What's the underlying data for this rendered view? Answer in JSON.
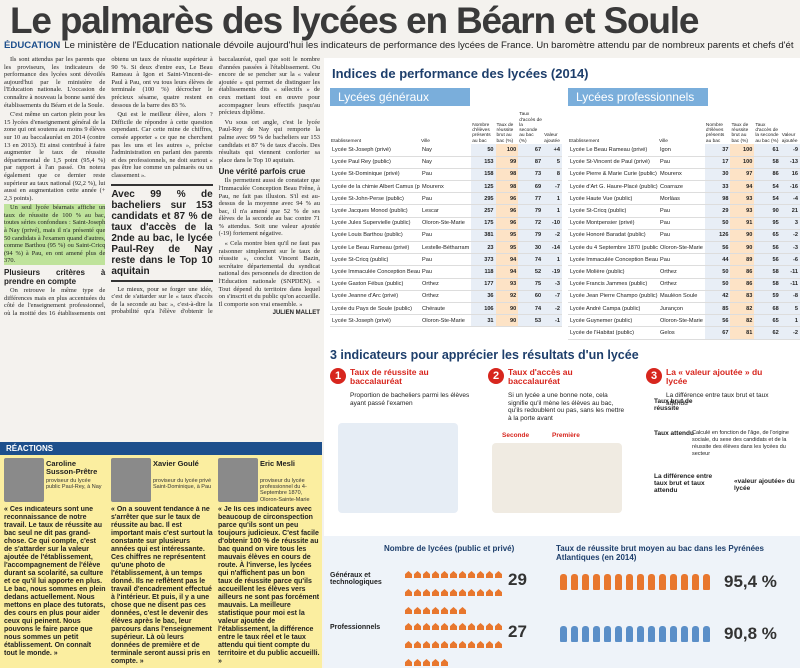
{
  "header": {
    "title": "Le palmarès des lycées en Béarn et Soule",
    "rubric": "ÉDUCATION",
    "standfirst": "Le ministère de l'Education nationale dévoile aujourd'hui les indicateurs de performance des lycées de France. Un baromètre attendu par de nombreux parents et chefs d'établissement."
  },
  "article": {
    "paragraphs": [
      "Ils sont attendus par les parents que les proviseurs, les indicateurs de performance des lycées sont dévoilés aujourd'hui par le ministère de l'Education nationale. L'occasion de connaître à nouveau la bonne santé des établissements du Béarn et de la Soule.",
      "C'est même un carton plein pour les 15 lycées d'enseignement général de la zone qui ont soutenu au moins 9 élèves sur 10 au baccalauréat en 2014 (contre 13 en 2013). Et ainsi contribué à faire augmenter le taux de réussite départemental de 1,5 point (95,4 %) par rapport à l'an passé. On notera également que ce dernier reste supérieur au taux national (92,2 %), lui aussi en augmentation cette année (+ 2,3 points).",
      "Un seul lycée béarnais affiche un taux de réussite de 100 % au bac, toutes séries confondues : Saint-Joseph à Nay (privé), mais il n'a présenté que 50 candidats à l'examen quand d'autres, comme Barthou (95 %) ou Saint-Cricq (94 %) à Pau, en ont amené plus de 370."
    ],
    "subheads": [
      "Plusieurs critères à prendre en compte",
      "Une vérité parfois crue"
    ],
    "paragraphs2": [
      "On retrouve le même type de différences mais en plus accentuées du côté de l'enseignement professionnel, où la moitié des 16 établissements ont obtenu un taux de réussite supérieur à 90 %. Si deux d'entre eux, Le Beau Rameau à Igon et Saint-Vincent-de-Paul à Pau, ont vu tous leurs élèves de terminale (100 %) décrocher le précieux sésame, quatre restent en dessous de la barre des 83 %.",
      "Qui est le meilleur élève, alors ? Difficile de répondre à cette question cependant. Car cette mine de chiffres, censée apporter « ce que ne cherchent pas les uns et les autres », précise l'administration en parlant des parents et des professionnels, ne doit surtout « pas être lue comme un palmarès ou un classement »."
    ],
    "pullquote": "Avec 99 % de bacheliers sur 153 candidats et 87 % de taux d'accès de la 2nde au bac, le lycée Paul-Rey de Nay reste dans le Top 10 aquitain",
    "paragraphs3": [
      "Le mieux, pour se forger une idée, c'est de s'attarder sur le « taux d'accès de la seconde au bac », c'est-à-dire la probabilité qu'a l'élève d'obtenir le baccalauréat, quel que soit le nombre d'années passées à l'établissement. Ou encore de se pencher sur la « valeur ajoutée » qui permet de distinguer les établissements dits « sélectifs » de ceux mettant tout en œuvre pour accompagner leurs effectifs jusqu'au précieux diplôme.",
      "Vu sous cet angle, c'est le lycée Paul-Rey de Nay qui remporte la palme avec 99 % de bacheliers sur 153 candidats et 87 % de taux d'accès. Des résultats qui viennent conforter sa place dans le Top 10 aquitain.",
      "Ils permettent aussi de constater que l'Immaculée Conception Beau Frêne, à Pau, ne fait pas illusion. S'il est au-dessus de la moyenne avec 94 % au bac, il n'a amené que 52 % de ses élèves de la seconde au bac contre 71 % attendus. Soit une valeur ajoutée (-19) fortement négative.",
      "« Cela montre bien qu'il ne faut pas raisonner simplement sur le taux de réussite », conclut Vincent Bazin, secrétaire départemental du syndicat national des personnels de direction de l'Education nationale (SNPDEN). « Tout dépend du territoire dans lequel on s'inscrit et du public qu'on accueille. Il comporte son vrai ensemble. »"
    ],
    "signature": "JULIEN MALLET"
  },
  "reactions": {
    "label": "RÉACTIONS",
    "people": [
      {
        "name": "Caroline Susson-Prêtre",
        "role": "proviseur du lycée public Paul-Rey, à Nay",
        "quote": "« Ces indicateurs sont une reconnaissance de notre travail. Le taux de réussite au bac seul ne dit pas grand-chose. Ce qui compte, c'est de s'attarder sur la valeur ajoutée de l'établissement, l'accompagnement de l'élève durant sa scolarité, sa culture et ce qu'il lui apporte en plus. Le bac, nous sommes en plein dedans actuellement. Nous mettons en place des tutorats, des cours en plus pour aider ceux qui peinent. Nous pouvons le faire parce que nous sommes un petit établissement. On connaît tout le monde. »"
      },
      {
        "name": "Xavier Goulé",
        "role": "proviseur du lycée privé Saint-Dominique, à Pau",
        "quote": "« On a souvent tendance à ne s'arrêter que sur le taux de réussite au bac. Il est important mais c'est surtout la constante sur plusieurs années qui est intéressante. Ces chiffres ne représentent qu'une photo de l'établissement, à un temps donné. Ils ne reflètent pas le travail d'encadrement effectué à l'intérieur. Et puis, il y a une chose que ne disent pas ces données, c'est le devenir des élèves après le bac, leur parcours dans l'enseignement supérieur. Là où leurs données de première et de terminale seront aussi pris en compte. »"
      },
      {
        "name": "Eric Mesli",
        "role": "proviseur du lycée professionnel du 4-Septembre 1870, Oloron-Sainte-Marie",
        "quote": "« Je lis ces indicateurs avec beaucoup de circonspection parce qu'ils sont un peu toujours judicieux. C'est facile d'obtenir 100 % de réussite au bac quand on vire tous les mauvais élèves en cours de route. À l'inverse, les lycées qui n'affichent pas un bon taux de réussite parce qu'ils accueillent les élèves vers ailleurs ne sont pas forcément mauvais. La meilleure statistique pour moi est la valeur ajoutée de l'établissement, la différence entre le taux réel et le taux attendu qui tient compte du territoire et du public accueilli. »"
      }
    ]
  },
  "infographic": {
    "title": "Indices de performance des lycées (2014)",
    "columns": [
      "Etablissement",
      "Ville",
      "Nombre d'élèves présents au bac",
      "Taux de réussite brut au bac (%)",
      "Taux d'accès de la seconde au bac (%)",
      "Valeur ajoutée"
    ],
    "tables": [
      {
        "title": "Lycées généraux",
        "rows": [
          [
            "Lycée St-Joseph (privé)",
            "Nay",
            "50",
            "100",
            "67",
            "+4"
          ],
          [
            "Lycée Paul Rey (public)",
            "Nay",
            "153",
            "99",
            "87",
            "5"
          ],
          [
            "Lycée St-Dominique (privé)",
            "Pau",
            "158",
            "98",
            "73",
            "8"
          ],
          [
            "Lycée de la chimie Albert Camus (public)",
            "Mourenx",
            "125",
            "98",
            "69",
            "-7"
          ],
          [
            "Lycée St-John-Perse (public)",
            "Pau",
            "295",
            "96",
            "77",
            "1"
          ],
          [
            "Lycée Jacques Monod (public)",
            "Lescar",
            "257",
            "96",
            "79",
            "1"
          ],
          [
            "Lycée Jules Supervielle (public)",
            "Oloron-Ste-Marie",
            "175",
            "96",
            "72",
            "-10"
          ],
          [
            "Lycée Louis Barthou (public)",
            "Pau",
            "381",
            "95",
            "79",
            "-2"
          ],
          [
            "Lycée Le Beau Rameau (privé)",
            "Lestelle-Bétharram",
            "23",
            "95",
            "30",
            "-14"
          ],
          [
            "Lycée St-Cricq (public)",
            "Pau",
            "373",
            "94",
            "74",
            "1"
          ],
          [
            "Lycée Immaculée Conception Beau Frêne (privé)",
            "Pau",
            "118",
            "94",
            "52",
            "-19"
          ],
          [
            "Lycée Gaston Fébus (public)",
            "Orthez",
            "177",
            "93",
            "75",
            "-3"
          ],
          [
            "Lycée Jeanne d'Arc (privé)",
            "Orthez",
            "36",
            "92",
            "60",
            "-7"
          ],
          [
            "Lycée du Pays de Soule (public)",
            "Chéraute",
            "106",
            "90",
            "74",
            "-2"
          ],
          [
            "Lycée St-Joseph (privé)",
            "Oloron-Ste-Marie",
            "31",
            "90",
            "53",
            "-1"
          ]
        ]
      },
      {
        "title": "Lycées professionnels",
        "rows": [
          [
            "Lycée Le Beau Rameau (privé)",
            "Igon",
            "37",
            "100",
            "61",
            "-9"
          ],
          [
            "Lycée St-Vincent de Paul (privé)",
            "Pau",
            "17",
            "100",
            "58",
            "-13"
          ],
          [
            "Lycée Pierre & Marie Curie (public)",
            "Mourenx",
            "30",
            "97",
            "86",
            "16"
          ],
          [
            "Lycée d'Art G. Haure-Placé (public)",
            "Coarraze",
            "33",
            "94",
            "54",
            "-16"
          ],
          [
            "Lycée Haute Vue (public)",
            "Morlàas",
            "98",
            "93",
            "54",
            "-4"
          ],
          [
            "Lycée St-Cricq (public)",
            "Pau",
            "29",
            "93",
            "90",
            "21"
          ],
          [
            "Lycée Montpensier (privé)",
            "Pau",
            "50",
            "91",
            "95",
            "3"
          ],
          [
            "Lycée Honoré Baradat (public)",
            "Pau",
            "126",
            "90",
            "65",
            "-2"
          ],
          [
            "Lycée du 4 Septembre 1870 (public)",
            "Oloron-Ste-Marie",
            "56",
            "90",
            "56",
            "-3"
          ],
          [
            "Lycée Immaculée Conception Beau Frêne (privé)",
            "Pau",
            "44",
            "89",
            "56",
            "-6"
          ],
          [
            "Lycée Molière (public)",
            "Orthez",
            "50",
            "86",
            "58",
            "-11"
          ],
          [
            "Lycée Francis Jammes (public)",
            "Orthez",
            "50",
            "86",
            "58",
            "-11"
          ],
          [
            "Lycée Jean Pierre Champo (public)",
            "Mauléon Soule",
            "42",
            "83",
            "59",
            "-8"
          ],
          [
            "Lycée André Campa (public)",
            "Jurançon",
            "85",
            "82",
            "68",
            "5"
          ],
          [
            "Lycée Guynemer (public)",
            "Oloron-Ste-Marie",
            "56",
            "82",
            "65",
            "1"
          ],
          [
            "Lycée de l'Habitat (public)",
            "Gelos",
            "67",
            "81",
            "62",
            "-2"
          ]
        ]
      }
    ],
    "indicators": {
      "title": "3 indicateurs pour apprécier les résultats d'un lycée",
      "items": [
        {
          "number": "1",
          "title": "Taux de réussite au baccalauréat",
          "text": "Proportion de bacheliers parmi les élèves ayant passé l'examen"
        },
        {
          "number": "2",
          "title": "Taux d'accès au baccalauréat",
          "text": "Si un lycée a une bonne note, cela signifie qu'il mène les élèves au bac, qu'ils redoublent ou pas, sans les mettre à la porte avant"
        },
        {
          "number": "3",
          "title": "La « valeur ajoutée » du lycée",
          "text": "La différence entre taux brut et taux attendu"
        }
      ],
      "formula": [
        "Taux brut de réussite",
        "Taux attendu",
        "Calculé en fonction de l'âge, de l'origine sociale, du sexe des candidats et de la réussite des élèves dans les lycées du secteur",
        "La différence entre taux brut et taux attendu",
        "«valeur ajoutée» du lycée"
      ],
      "steps": [
        "Seconde",
        "Première"
      ]
    },
    "counts": {
      "title": "Nombre de lycées (public et privé)",
      "items": [
        {
          "label": "Généraux et technologiques",
          "value": 29
        },
        {
          "label": "Professionnels",
          "value": 27
        }
      ]
    },
    "rates": {
      "title": "Taux de réussite brut moyen au bac dans les Pyrénées Atlantiques (en 2014)",
      "items": [
        "95,4 %",
        "90,8 %"
      ]
    }
  }
}
